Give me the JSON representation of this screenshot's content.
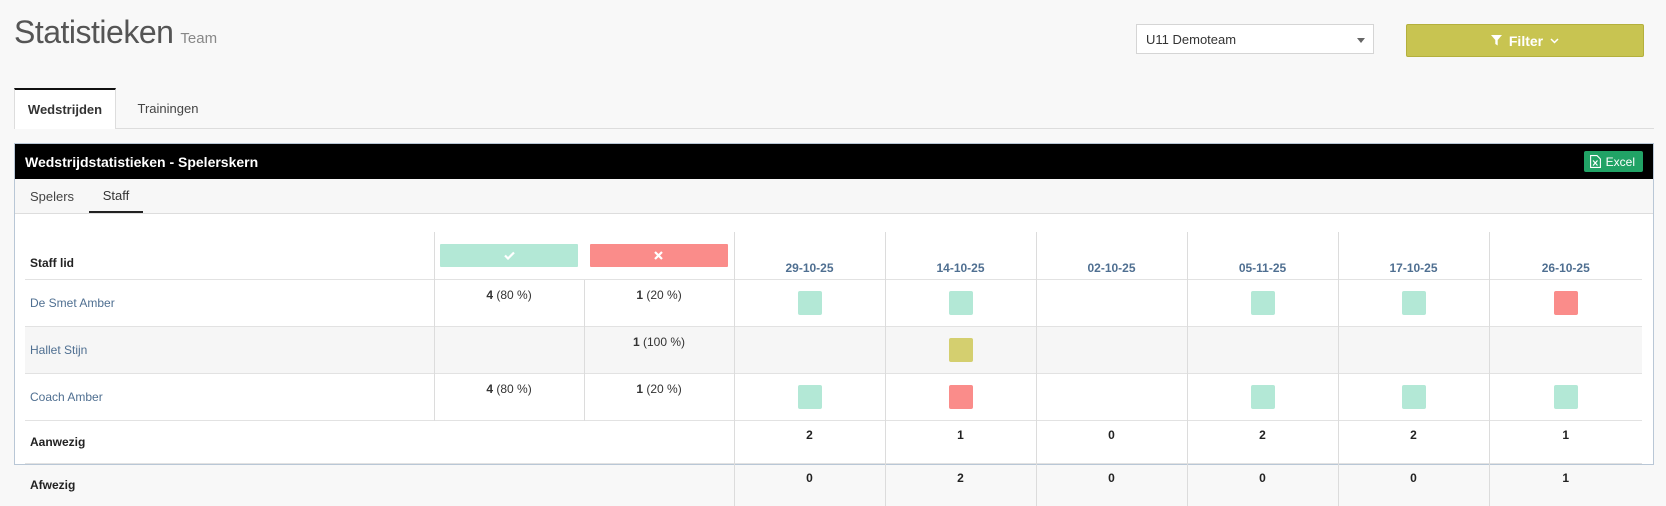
{
  "header": {
    "title": "Statistieken",
    "subtitle": "Team",
    "team_select": "U11 Demoteam",
    "filter_label": "Filter"
  },
  "tabs": [
    {
      "label": "Wedstrijden",
      "active": true
    },
    {
      "label": "Trainingen",
      "active": false
    }
  ],
  "panel": {
    "title": "Wedstrijdstatistieken - Spelerskern",
    "excel_label": "Excel",
    "subtabs": [
      {
        "label": "Spelers",
        "active": false
      },
      {
        "label": "Staff",
        "active": true
      }
    ]
  },
  "table": {
    "name_header": "Staff lid",
    "dates": [
      "29-10-25",
      "14-10-25",
      "02-10-25",
      "05-11-25",
      "17-10-25",
      "26-10-25"
    ],
    "rows": [
      {
        "name": "De Smet Amber",
        "present_count": "4",
        "present_pct": "(80 %)",
        "absent_count": "1",
        "absent_pct": "(20 %)",
        "cells": [
          "present",
          "present",
          "",
          "present",
          "present",
          "absent"
        ]
      },
      {
        "name": "Hallet Stijn",
        "present_count": "",
        "present_pct": "",
        "absent_count": "1",
        "absent_pct": "(100 %)",
        "cells": [
          "",
          "excused",
          "",
          "",
          "",
          ""
        ]
      },
      {
        "name": "Coach Amber",
        "present_count": "4",
        "present_pct": "(80 %)",
        "absent_count": "1",
        "absent_pct": "(20 %)",
        "cells": [
          "present",
          "absent",
          "",
          "present",
          "present",
          "present"
        ]
      }
    ],
    "summary": [
      {
        "label": "Aanwezig",
        "values": [
          "2",
          "1",
          "0",
          "2",
          "2",
          "1"
        ]
      },
      {
        "label": "Afwezig",
        "values": [
          "0",
          "2",
          "0",
          "0",
          "0",
          "1"
        ]
      }
    ]
  },
  "colors": {
    "present": "#b3e8d6",
    "absent": "#fa8c8a",
    "excused": "#d4cf6f",
    "filter": "#c8c451",
    "excel": "#21a366",
    "link": "#4f6f91"
  }
}
